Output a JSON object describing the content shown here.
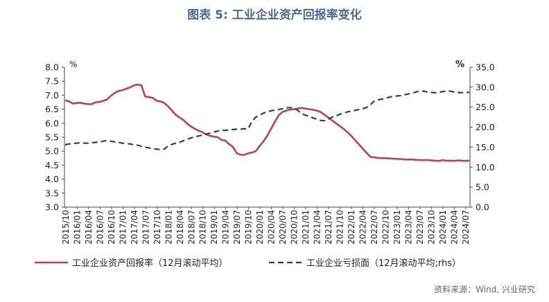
{
  "title": "图表 5:  工业企业资产回报率变化",
  "source": "资料来源：Wind, 兴业研究",
  "colors": {
    "series1": "#c0404a",
    "series2": "#2c3e5c",
    "axis": "#444444",
    "title": "#4a6a90"
  },
  "chart_data": {
    "type": "line",
    "left_axis": {
      "unit": "%",
      "ylim": [
        3.0,
        8.0
      ],
      "ticks": [
        "3.0",
        "3.5",
        "4.0",
        "4.5",
        "5.0",
        "5.5",
        "6.0",
        "6.5",
        "7.0",
        "7.5",
        "8.0"
      ]
    },
    "right_axis": {
      "unit": "%",
      "ylim": [
        0.0,
        35.0
      ],
      "ticks": [
        "0.0",
        "5.0",
        "10.0",
        "15.0",
        "20.0",
        "25.0",
        "30.0",
        "35.0"
      ]
    },
    "x_tick_labels": [
      "2015/10",
      "2016/01",
      "2016/04",
      "2016/07",
      "2016/10",
      "2017/01",
      "2017/04",
      "2017/07",
      "2017/10",
      "2018/01",
      "2018/04",
      "2018/07",
      "2018/10",
      "2019/01",
      "2019/04",
      "2019/07",
      "2019/10",
      "2020/01",
      "2020/04",
      "2020/07",
      "2020/10",
      "2021/01",
      "2021/04",
      "2021/07",
      "2021/10",
      "2022/01",
      "2022/04",
      "2022/07",
      "2022/10",
      "2023/01",
      "2023/04",
      "2023/07",
      "2023/10",
      "2024/01",
      "2024/04",
      "2024/07"
    ],
    "series": [
      {
        "name": "工业企业资产回报率（12月滚动平均）",
        "axis": "left",
        "style": "solid",
        "values": [
          6.82,
          6.78,
          6.7,
          6.72,
          6.73,
          6.7,
          6.68,
          6.68,
          6.75,
          6.76,
          6.8,
          6.85,
          6.98,
          7.08,
          7.15,
          7.18,
          7.23,
          7.28,
          7.35,
          7.38,
          7.35,
          6.95,
          6.93,
          6.9,
          6.8,
          6.78,
          6.72,
          6.6,
          6.45,
          6.3,
          6.2,
          6.12,
          5.98,
          5.88,
          5.8,
          5.73,
          5.68,
          5.6,
          5.55,
          5.52,
          5.5,
          5.4,
          5.38,
          5.25,
          5.15,
          4.93,
          4.87,
          4.87,
          4.92,
          4.95,
          5.0,
          5.18,
          5.35,
          5.55,
          5.8,
          6.05,
          6.28,
          6.4,
          6.45,
          6.48,
          6.5,
          6.52,
          6.55,
          6.52,
          6.5,
          6.48,
          6.45,
          6.4,
          6.3,
          6.2,
          6.1,
          6.0,
          5.9,
          5.8,
          5.68,
          5.55,
          5.4,
          5.25,
          5.1,
          4.95,
          4.8,
          4.78,
          4.76,
          4.75,
          4.75,
          4.74,
          4.73,
          4.72,
          4.72,
          4.7,
          4.7,
          4.7,
          4.69,
          4.68,
          4.68,
          4.68,
          4.67,
          4.66,
          4.65,
          4.68,
          4.66,
          4.66,
          4.65,
          4.67,
          4.66,
          4.65,
          4.66
        ]
      },
      {
        "name": "工业企业亏损面（12月滚动平均;rhs）",
        "axis": "right",
        "style": "dashed",
        "values": [
          15.6,
          15.8,
          15.9,
          16.0,
          16.1,
          16.0,
          16.0,
          16.1,
          16.2,
          16.3,
          16.5,
          16.6,
          16.5,
          16.3,
          16.2,
          16.0,
          15.9,
          15.8,
          15.6,
          15.5,
          15.2,
          15.0,
          14.8,
          14.6,
          14.5,
          14.4,
          14.5,
          15.3,
          15.7,
          16.0,
          16.2,
          16.6,
          17.0,
          17.3,
          17.6,
          17.8,
          18.0,
          18.3,
          18.5,
          18.8,
          19.0,
          19.2,
          19.2,
          19.3,
          19.4,
          19.5,
          19.5,
          19.6,
          19.6,
          21.5,
          22.5,
          23.0,
          23.5,
          23.8,
          24.1,
          24.3,
          24.4,
          24.6,
          24.8,
          24.9,
          24.7,
          24.2,
          23.4,
          23.0,
          22.7,
          22.3,
          22.0,
          21.7,
          21.6,
          22.0,
          22.5,
          22.8,
          23.2,
          23.5,
          23.8,
          24.0,
          24.2,
          24.4,
          24.6,
          24.9,
          25.5,
          26.5,
          26.8,
          27.0,
          27.2,
          27.5,
          27.7,
          27.8,
          27.9,
          28.1,
          28.3,
          28.5,
          28.8,
          29.0,
          29.0,
          28.8,
          28.7,
          28.6,
          28.7,
          28.9,
          29.0,
          29.0,
          28.8,
          28.7,
          28.6,
          28.7,
          28.7
        ]
      }
    ],
    "grid": false,
    "legend_position": "bottom"
  }
}
